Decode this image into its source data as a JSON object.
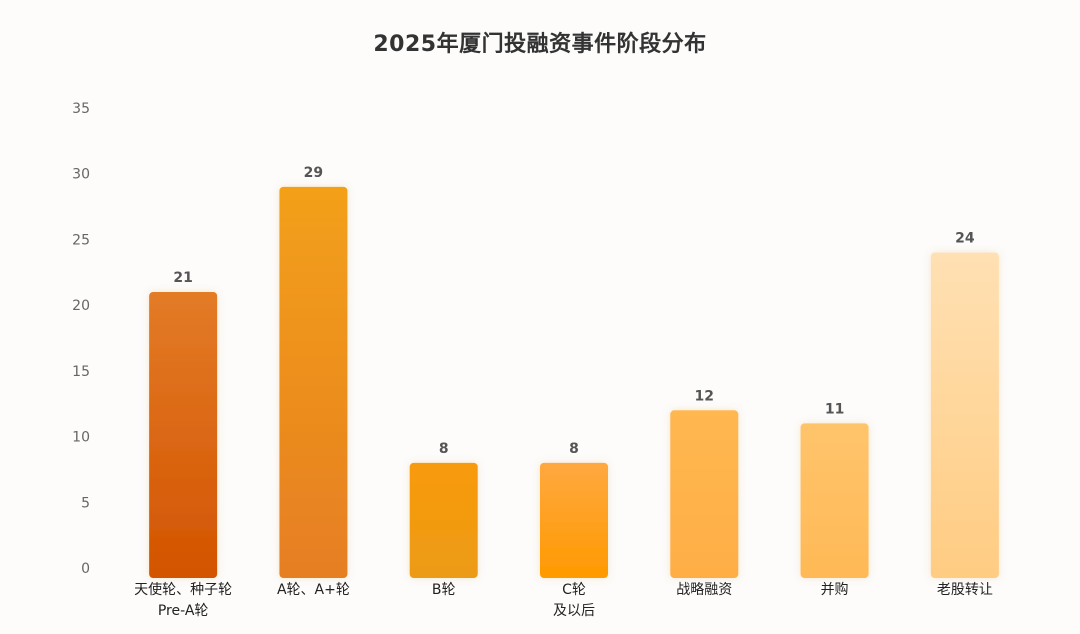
{
  "chart_data": {
    "type": "bar",
    "title": "2025年厦门投融资事件阶段分布",
    "xlabel": "",
    "ylabel": "",
    "categories": [
      [
        "天使轮、种子轮",
        "Pre-A轮"
      ],
      [
        "A轮、A+轮"
      ],
      [
        "B轮"
      ],
      [
        "C轮",
        "及以后"
      ],
      [
        "战略融资"
      ],
      [
        "并购"
      ],
      [
        "老股转让"
      ]
    ],
    "values": [
      21,
      29,
      8,
      8,
      12,
      11,
      24
    ],
    "ylim": [
      0,
      35
    ],
    "yticks": [
      0,
      5,
      10,
      15,
      20,
      25,
      30,
      35
    ],
    "grid": false,
    "legend": "none",
    "bar_gradients": [
      [
        "#e37b27",
        "#d35400"
      ],
      [
        "#f3a019",
        "#e67e22"
      ],
      [
        "#f99a0c",
        "#ec9b15"
      ],
      [
        "#ffa840",
        "#ff9a00"
      ],
      [
        "#ffb750",
        "#ffae45"
      ],
      [
        "#ffc46b",
        "#ffb956"
      ],
      [
        "#ffe0b3",
        "#ffcc82"
      ]
    ]
  }
}
